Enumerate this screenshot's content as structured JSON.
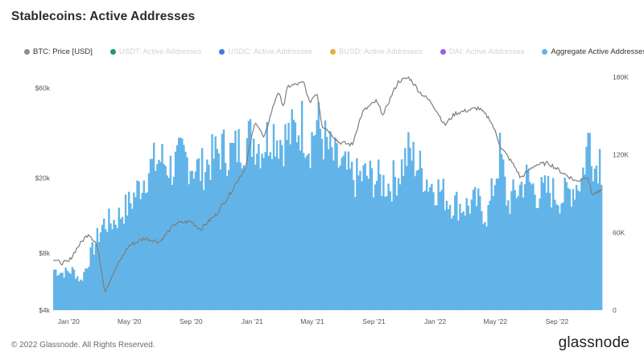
{
  "title": "Stablecoins: Active Addresses",
  "legend": [
    {
      "label": "BTC: Price [USD]",
      "color": "#8c8c8c",
      "muted": false
    },
    {
      "label": "USDT: Active Addresses",
      "color": "#1e9b63",
      "muted": true
    },
    {
      "label": "USDC: Active Addresses",
      "color": "#3d7de0",
      "muted": true
    },
    {
      "label": "BUSD: Active Addresses",
      "color": "#e8b13a",
      "muted": true
    },
    {
      "label": "DAI: Active Addresses",
      "color": "#a35ae6",
      "muted": true
    },
    {
      "label": "Aggregate Active Addresses",
      "color": "#62b4e8",
      "muted": false
    }
  ],
  "footer": {
    "copyright": "© 2022 Glassnode. All Rights Reserved.",
    "brand": "glassnode"
  },
  "chart_data": {
    "type": "bar",
    "title": "Stablecoins: Active Addresses",
    "x_range": [
      "2019-12-01",
      "2022-11-30"
    ],
    "x_ticks": [
      "Jan '20",
      "May '20",
      "Sep '20",
      "Jan '21",
      "May '21",
      "Sep '21",
      "Jan '22",
      "May '22",
      "Sep '22"
    ],
    "left_axis": {
      "scale": "log",
      "ticks": [
        "$4k",
        "$8k",
        "$20k",
        "$60k"
      ],
      "tick_values": [
        4000,
        8000,
        20000,
        60000
      ],
      "range": [
        4000,
        80000
      ]
    },
    "right_axis": {
      "scale": "linear",
      "ticks": [
        "0",
        "60K",
        "120K",
        "180K"
      ],
      "tick_values": [
        0,
        60000,
        120000,
        180000
      ],
      "range": [
        0,
        190000
      ]
    },
    "grid": false,
    "legend_position": "top",
    "series": [
      {
        "name": "BTC: Price [USD]",
        "axis": "left",
        "render": "line",
        "color": "#8c8c8c",
        "points": [
          [
            "2019-12-01",
            7500
          ],
          [
            "2019-12-15",
            7100
          ],
          [
            "2020-01-01",
            7200
          ],
          [
            "2020-01-20",
            8700
          ],
          [
            "2020-02-10",
            10200
          ],
          [
            "2020-02-25",
            9000
          ],
          [
            "2020-03-13",
            5000
          ],
          [
            "2020-04-01",
            6400
          ],
          [
            "2020-05-01",
            8800
          ],
          [
            "2020-06-01",
            9600
          ],
          [
            "2020-07-01",
            9200
          ],
          [
            "2020-08-01",
            11500
          ],
          [
            "2020-09-01",
            11800
          ],
          [
            "2020-09-20",
            10700
          ],
          [
            "2020-10-21",
            12800
          ],
          [
            "2020-11-15",
            16000
          ],
          [
            "2020-12-01",
            19000
          ],
          [
            "2020-12-20",
            23000
          ],
          [
            "2021-01-08",
            40000
          ],
          [
            "2021-01-25",
            32000
          ],
          [
            "2021-02-10",
            46000
          ],
          [
            "2021-02-21",
            57000
          ],
          [
            "2021-03-05",
            48000
          ],
          [
            "2021-03-13",
            61000
          ],
          [
            "2021-04-14",
            64000
          ],
          [
            "2021-04-25",
            50000
          ],
          [
            "2021-05-10",
            57000
          ],
          [
            "2021-05-20",
            38000
          ],
          [
            "2021-06-01",
            36000
          ],
          [
            "2021-06-22",
            31000
          ],
          [
            "2021-07-20",
            30000
          ],
          [
            "2021-08-10",
            45000
          ],
          [
            "2021-09-05",
            51000
          ],
          [
            "2021-09-20",
            43000
          ],
          [
            "2021-10-20",
            65000
          ],
          [
            "2021-11-10",
            68000
          ],
          [
            "2021-12-01",
            57000
          ],
          [
            "2021-12-25",
            50000
          ],
          [
            "2022-01-20",
            38000
          ],
          [
            "2022-02-10",
            44000
          ],
          [
            "2022-03-28",
            47000
          ],
          [
            "2022-04-20",
            41000
          ],
          [
            "2022-05-12",
            29000
          ],
          [
            "2022-06-13",
            22000
          ],
          [
            "2022-06-20",
            20000
          ],
          [
            "2022-07-20",
            23500
          ],
          [
            "2022-08-15",
            24000
          ],
          [
            "2022-09-10",
            21500
          ],
          [
            "2022-10-10",
            19200
          ],
          [
            "2022-11-01",
            20500
          ],
          [
            "2022-11-09",
            16500
          ],
          [
            "2022-11-30",
            17000
          ]
        ]
      },
      {
        "name": "Aggregate Active Addresses",
        "axis": "right",
        "render": "bars",
        "color": "#62b4e8",
        "points": [
          [
            "2019-12-01",
            34000
          ],
          [
            "2019-12-20",
            31000
          ],
          [
            "2020-01-10",
            33000
          ],
          [
            "2020-01-25",
            24000
          ],
          [
            "2020-02-10",
            42000
          ],
          [
            "2020-03-10",
            72000
          ],
          [
            "2020-04-01",
            74000
          ],
          [
            "2020-05-01",
            88000
          ],
          [
            "2020-05-20",
            102000
          ],
          [
            "2020-06-10",
            118000
          ],
          [
            "2020-07-01",
            126000
          ],
          [
            "2020-07-25",
            118000
          ],
          [
            "2020-08-15",
            128000
          ],
          [
            "2020-09-01",
            122000
          ],
          [
            "2020-09-20",
            116000
          ],
          [
            "2020-10-10",
            125000
          ],
          [
            "2020-11-01",
            134000
          ],
          [
            "2020-11-20",
            130000
          ],
          [
            "2020-12-10",
            138000
          ],
          [
            "2021-01-01",
            144000
          ],
          [
            "2021-01-20",
            136000
          ],
          [
            "2021-02-10",
            150000
          ],
          [
            "2021-03-01",
            141000
          ],
          [
            "2021-03-20",
            146000
          ],
          [
            "2021-04-10",
            155000
          ],
          [
            "2021-04-25",
            137000
          ],
          [
            "2021-05-10",
            156000
          ],
          [
            "2021-05-25",
            141000
          ],
          [
            "2021-06-10",
            127000
          ],
          [
            "2021-07-01",
            118000
          ],
          [
            "2021-07-25",
            109000
          ],
          [
            "2021-08-15",
            112000
          ],
          [
            "2021-09-10",
            108000
          ],
          [
            "2021-10-01",
            104000
          ],
          [
            "2021-10-20",
            114000
          ],
          [
            "2021-11-10",
            132000
          ],
          [
            "2021-12-01",
            118000
          ],
          [
            "2021-12-20",
            106000
          ],
          [
            "2022-01-10",
            100000
          ],
          [
            "2022-02-01",
            90000
          ],
          [
            "2022-03-01",
            86000
          ],
          [
            "2022-03-25",
            90000
          ],
          [
            "2022-04-15",
            78000
          ],
          [
            "2022-05-11",
            132000
          ],
          [
            "2022-05-25",
            88000
          ],
          [
            "2022-06-15",
            100000
          ],
          [
            "2022-07-01",
            110000
          ],
          [
            "2022-07-25",
            96000
          ],
          [
            "2022-08-15",
            100000
          ],
          [
            "2022-09-10",
            93000
          ],
          [
            "2022-10-01",
            101000
          ],
          [
            "2022-10-20",
            109000
          ],
          [
            "2022-11-05",
            148000
          ],
          [
            "2022-11-15",
            118000
          ],
          [
            "2022-11-25",
            129000
          ],
          [
            "2022-11-30",
            115000
          ]
        ]
      }
    ]
  }
}
